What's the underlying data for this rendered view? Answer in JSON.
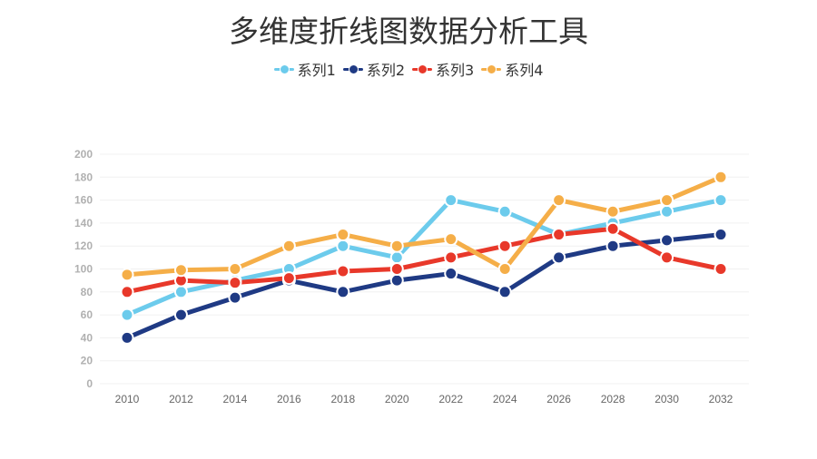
{
  "chart_data": {
    "type": "line",
    "title": "多维度折线图数据分析工具",
    "legend_position": "top",
    "grid": true,
    "ylim": [
      0,
      200
    ],
    "yticks": [
      0,
      20,
      40,
      60,
      80,
      100,
      120,
      140,
      160,
      180,
      200
    ],
    "categories": [
      "2010",
      "2012",
      "2014",
      "2016",
      "2018",
      "2020",
      "2022",
      "2024",
      "2026",
      "2028",
      "2030",
      "2032"
    ],
    "series": [
      {
        "name": "系列1",
        "color": "#6ccbec",
        "values": [
          60,
          80,
          90,
          100,
          120,
          110,
          160,
          150,
          130,
          140,
          150,
          160
        ]
      },
      {
        "name": "系列2",
        "color": "#1f3a84",
        "values": [
          40,
          60,
          75,
          90,
          80,
          90,
          96,
          80,
          110,
          120,
          125,
          130
        ]
      },
      {
        "name": "系列3",
        "color": "#e8382a",
        "values": [
          80,
          90,
          88,
          92,
          98,
          100,
          110,
          120,
          130,
          135,
          110,
          100
        ]
      },
      {
        "name": "系列4",
        "color": "#f5ae48",
        "values": [
          95,
          99,
          100,
          120,
          130,
          120,
          126,
          100,
          160,
          150,
          160,
          180
        ]
      }
    ]
  }
}
